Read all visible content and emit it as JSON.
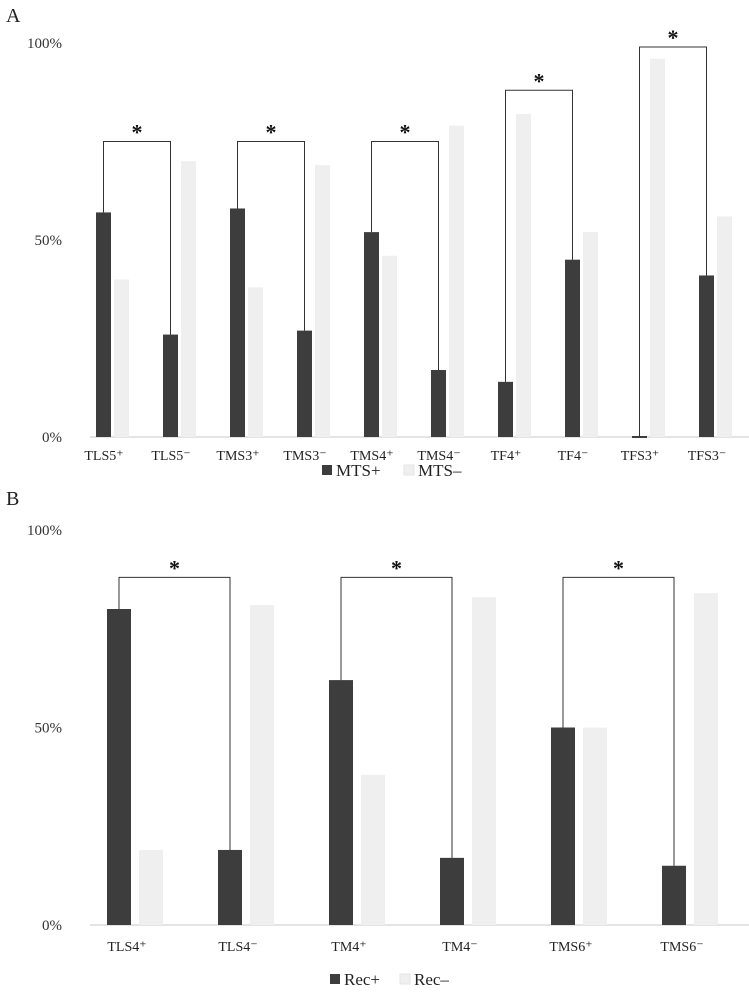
{
  "chart_data": [
    {
      "type": "bar",
      "panel_label": "A",
      "title": "",
      "xlabel": "",
      "ylabel": "",
      "ylim": [
        0,
        100
      ],
      "y_ticks": [
        "0%",
        "50%",
        "100%"
      ],
      "categories": [
        "TLS5⁺",
        "TLS5⁻",
        "TMS3⁺",
        "TMS3⁻",
        "TMS4⁺",
        "TMS4⁻",
        "TF4⁺",
        "TF4⁻",
        "TFS3⁺",
        "TFS3⁻"
      ],
      "series": [
        {
          "name": "MTS+",
          "color": "#3d3d3d",
          "values": [
            57,
            26,
            58,
            27,
            52,
            17,
            14,
            45,
            0,
            41
          ]
        },
        {
          "name": "MTS–",
          "color": "#efefef",
          "values": [
            40,
            70,
            38,
            69,
            46,
            79,
            82,
            52,
            96,
            56
          ]
        }
      ],
      "significance": [
        {
          "from": 0,
          "to": 1,
          "height": 75,
          "label": "*"
        },
        {
          "from": 2,
          "to": 3,
          "height": 75,
          "label": "*"
        },
        {
          "from": 4,
          "to": 5,
          "height": 75,
          "label": "*"
        },
        {
          "from": 6,
          "to": 7,
          "height": 88,
          "label": "*"
        },
        {
          "from": 8,
          "to": 9,
          "height": 99,
          "label": "*"
        }
      ],
      "legend": [
        "MTS+",
        "MTS–"
      ],
      "legend_position": "bottom",
      "grid": false
    },
    {
      "type": "bar",
      "panel_label": "B",
      "title": "",
      "xlabel": "",
      "ylabel": "",
      "ylim": [
        0,
        100
      ],
      "y_ticks": [
        "0%",
        "50%",
        "100%"
      ],
      "categories": [
        "TLS4⁺",
        "TLS4⁻",
        "TM4⁺",
        "TM4⁻",
        "TMS6⁺",
        "TMS6⁻"
      ],
      "series": [
        {
          "name": "Rec+",
          "color": "#3d3d3d",
          "values": [
            80,
            19,
            62,
            17,
            50,
            15
          ]
        },
        {
          "name": "Rec–",
          "color": "#efefef",
          "values": [
            19,
            81,
            38,
            83,
            50,
            84
          ]
        }
      ],
      "significance": [
        {
          "from": 0,
          "to": 1,
          "height": 88,
          "label": "*"
        },
        {
          "from": 2,
          "to": 3,
          "height": 88,
          "label": "*"
        },
        {
          "from": 4,
          "to": 5,
          "height": 88,
          "label": "*"
        }
      ],
      "legend": [
        "Rec+",
        "Rec–"
      ],
      "legend_position": "bottom",
      "grid": false
    }
  ]
}
